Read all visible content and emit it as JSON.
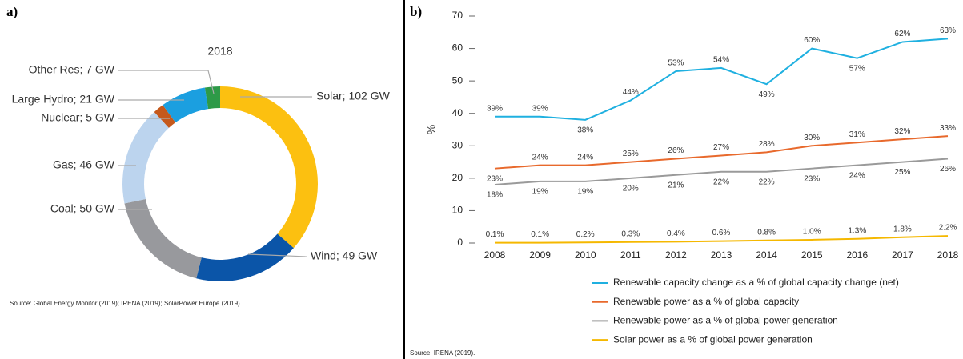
{
  "chart_data": [
    {
      "type": "pie",
      "panel": "a)",
      "title": "2018",
      "values": [
        102,
        49,
        50,
        46,
        5,
        21,
        7
      ],
      "value_labels": [
        "Solar; 102 GW",
        "Wind; 49 GW",
        "Coal; 50 GW",
        "Gas; 46 GW",
        "Nuclear; 5 GW",
        "Large Hydro; 21 GW",
        "Other Res; 7 GW"
      ],
      "colors": [
        "#fcc010",
        "#0b55a8",
        "#98999d",
        "#bcd4ee",
        "#c5591c",
        "#1b9fe0",
        "#2e9a48"
      ],
      "source": "Source: Global Energy Monitor (2019); IRENA (2019); SolarPower Europe (2019)."
    },
    {
      "type": "line",
      "panel": "b)",
      "ylabel": "%",
      "categories": [
        "2008",
        "2009",
        "2010",
        "2011",
        "2012",
        "2013",
        "2014",
        "2015",
        "2016",
        "2017",
        "2018"
      ],
      "ylim": [
        0,
        70
      ],
      "yticks": [
        0,
        10,
        20,
        30,
        40,
        50,
        60,
        70
      ],
      "series": [
        {
          "name": "Renewable capacity change as a % of global capacity change (net)",
          "color": "#1fb0e0",
          "values": [
            39,
            39,
            38,
            44,
            53,
            54,
            49,
            60,
            57,
            62,
            63
          ],
          "value_labels": [
            "39%",
            "39%",
            "38%",
            "44%",
            "53%",
            "54%",
            "49%",
            "60%",
            "57%",
            "62%",
            "63%"
          ]
        },
        {
          "name": "Renewable power as a % of global capacity",
          "color": "#e8692c",
          "values": [
            23,
            24,
            24,
            25,
            26,
            27,
            28,
            30,
            31,
            32,
            33
          ],
          "value_labels": [
            "23%",
            "24%",
            "24%",
            "25%",
            "26%",
            "27%",
            "28%",
            "30%",
            "31%",
            "32%",
            "33%"
          ]
        },
        {
          "name": "Renewable power as a % of global power generation",
          "color": "#9a9a9a",
          "values": [
            18,
            19,
            19,
            20,
            21,
            22,
            22,
            23,
            24,
            25,
            26
          ],
          "value_labels": [
            "18%",
            "19%",
            "19%",
            "20%",
            "21%",
            "22%",
            "22%",
            "23%",
            "24%",
            "25%",
            "26%"
          ]
        },
        {
          "name": "Solar power as a % of global power generation",
          "color": "#f5b800",
          "values": [
            0.1,
            0.1,
            0.2,
            0.3,
            0.4,
            0.6,
            0.8,
            1.0,
            1.3,
            1.8,
            2.2
          ],
          "value_labels": [
            "0.1%",
            "0.1%",
            "0.2%",
            "0.3%",
            "0.4%",
            "0.6%",
            "0.8%",
            "1.0%",
            "1.3%",
            "1.8%",
            "2.2%"
          ]
        }
      ],
      "source": "Source: IRENA (2019)."
    }
  ]
}
